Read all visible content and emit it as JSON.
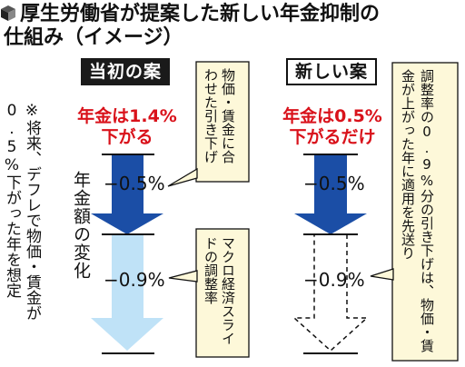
{
  "title": {
    "line1": "厚生労働省が提案した新しい年金抑制の",
    "line2": "仕組み（イメージ）"
  },
  "icon": "cube-icon",
  "colors": {
    "arrow_dark": "#1b4ea6",
    "arrow_light": "#bfe2f7",
    "emphasis_red": "#d9121b",
    "callout_bg": "#fdf8d9"
  },
  "note": "※将来、デフレで物価・賃金が0.5%下がった年を想定",
  "y_label": "年金額の変化",
  "current_plan": {
    "tag": "当初の案",
    "summary_line1": "年金は1.4%",
    "summary_line2": "下がる",
    "cut_1": "−0.5%",
    "cut_2": "−0.9%",
    "callout_1": "物価・賃金に合わせた引き下げ",
    "callout_2": "マクロ経済スライドの調整率"
  },
  "new_plan": {
    "tag": "新しい案",
    "summary_line1": "年金は0.5%",
    "summary_line2": "下がるだけ",
    "cut_1": "−0.5%",
    "cut_2": "−0.9%",
    "callout": "調整率の0.9%分の引き下げは、物価・賃金が上がった年に適用を先送り"
  }
}
